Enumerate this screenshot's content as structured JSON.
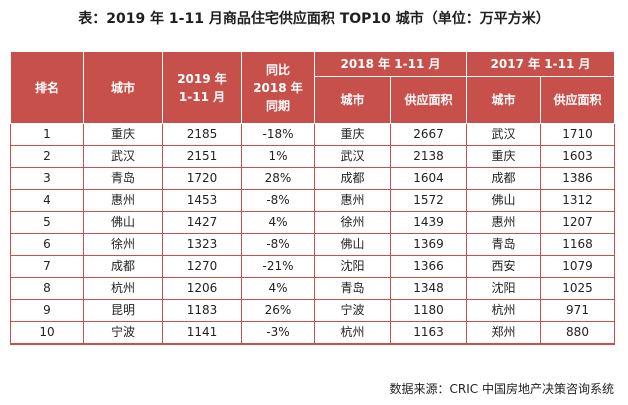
{
  "title": "表：2019 年 1-11 月商品住宅供应面积 TOP10 城市（单位：万平方米）",
  "headers": {
    "rank": "排名",
    "city": "城市",
    "supply2019_line1": "2019 年",
    "supply2019_line2": "1-11 月",
    "yoy_line1": "同比",
    "yoy_line2": "2018 年",
    "yoy_line3": "同期",
    "group2018": "2018 年 1-11 月",
    "group2017": "2017 年 1-11 月",
    "sub_city_2018": "城市",
    "sub_area_2018": "供应面积",
    "sub_city_2017": "城市",
    "sub_area_2017": "供应面积"
  },
  "rows": [
    {
      "rank": "1",
      "city": "重庆",
      "supply2019": "2185",
      "yoy": "-18%",
      "city2018": "重庆",
      "area2018": "2667",
      "city2017": "武汉",
      "area2017": "1710"
    },
    {
      "rank": "2",
      "city": "武汉",
      "supply2019": "2151",
      "yoy": "1%",
      "city2018": "武汉",
      "area2018": "2138",
      "city2017": "重庆",
      "area2017": "1603"
    },
    {
      "rank": "3",
      "city": "青岛",
      "supply2019": "1720",
      "yoy": "28%",
      "city2018": "成都",
      "area2018": "1604",
      "city2017": "成都",
      "area2017": "1386"
    },
    {
      "rank": "4",
      "city": "惠州",
      "supply2019": "1453",
      "yoy": "-8%",
      "city2018": "惠州",
      "area2018": "1572",
      "city2017": "佛山",
      "area2017": "1312"
    },
    {
      "rank": "5",
      "city": "佛山",
      "supply2019": "1427",
      "yoy": "4%",
      "city2018": "徐州",
      "area2018": "1439",
      "city2017": "惠州",
      "area2017": "1207"
    },
    {
      "rank": "6",
      "city": "徐州",
      "supply2019": "1323",
      "yoy": "-8%",
      "city2018": "佛山",
      "area2018": "1369",
      "city2017": "青岛",
      "area2017": "1168"
    },
    {
      "rank": "7",
      "city": "成都",
      "supply2019": "1270",
      "yoy": "-21%",
      "city2018": "沈阳",
      "area2018": "1366",
      "city2017": "西安",
      "area2017": "1079"
    },
    {
      "rank": "8",
      "city": "杭州",
      "supply2019": "1206",
      "yoy": "4%",
      "city2018": "青岛",
      "area2018": "1348",
      "city2017": "沈阳",
      "area2017": "1025"
    },
    {
      "rank": "9",
      "city": "昆明",
      "supply2019": "1183",
      "yoy": "26%",
      "city2018": "宁波",
      "area2018": "1180",
      "city2017": "杭州",
      "area2017": "971"
    },
    {
      "rank": "10",
      "city": "宁波",
      "supply2019": "1141",
      "yoy": "-3%",
      "city2018": "杭州",
      "area2018": "1163",
      "city2017": "郑州",
      "area2017": "880"
    }
  ],
  "source": "数据来源：CRIC 中国房地产决策咨询系统",
  "colors": {
    "header_bg": "#c8504b",
    "header_text": "#ffffff",
    "border": "#c8504b"
  }
}
